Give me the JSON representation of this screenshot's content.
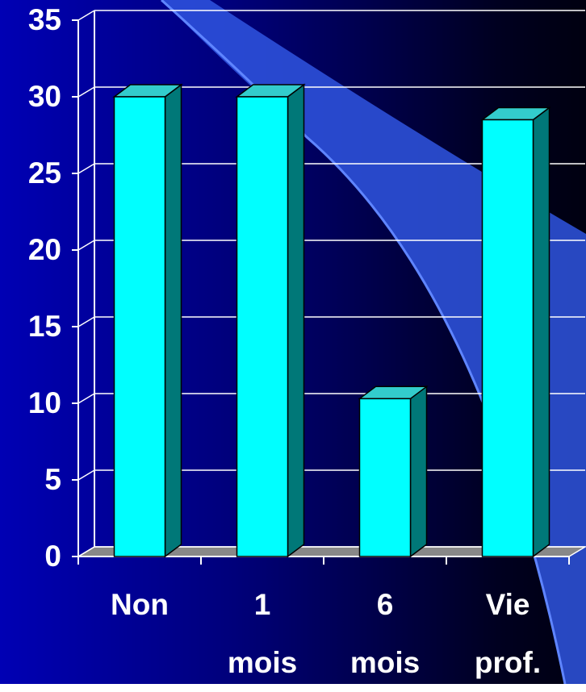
{
  "chart_data": {
    "type": "bar",
    "categories": [
      "Non",
      "1 mois",
      "6 mois",
      "Vie prof."
    ],
    "values": [
      30,
      30,
      10.3,
      28.5
    ],
    "color": "#00ffff",
    "ylim": [
      0,
      35
    ],
    "yticks": [
      0,
      5,
      10,
      15,
      20,
      25,
      30,
      35
    ],
    "grid": true
  }
}
